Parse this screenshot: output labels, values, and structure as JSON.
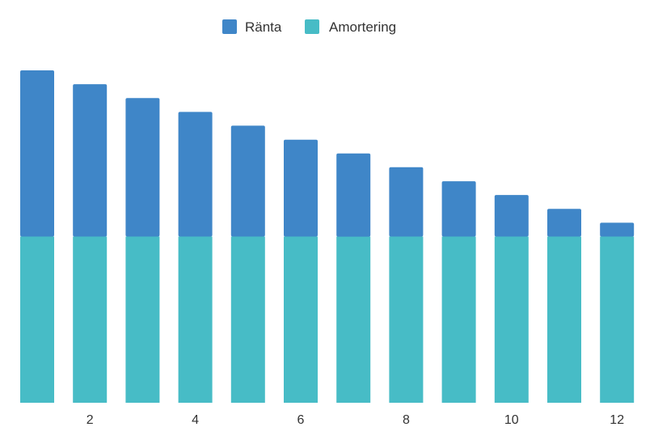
{
  "chart_data": {
    "type": "bar",
    "stacked": true,
    "categories": [
      "1",
      "2",
      "3",
      "4",
      "5",
      "6",
      "7",
      "8",
      "9",
      "10",
      "11",
      "12"
    ],
    "x_tick_labels": [
      "2",
      "4",
      "6",
      "8",
      "10",
      "12"
    ],
    "series": [
      {
        "name": "Amortering",
        "color": "#47BCC6",
        "values": [
          100,
          100,
          100,
          100,
          100,
          100,
          100,
          100,
          100,
          100,
          100,
          100
        ]
      },
      {
        "name": "Ränta",
        "color": "#3F86C8",
        "values": [
          100,
          91.7,
          83.3,
          75,
          66.7,
          58.3,
          50,
          41.7,
          33.3,
          25,
          16.7,
          8.3
        ]
      }
    ],
    "legend": {
      "position": "top-center",
      "order": [
        "Ränta",
        "Amortering"
      ]
    },
    "ylim": [
      0,
      200
    ],
    "grid": false,
    "y_axis_visible": false
  }
}
